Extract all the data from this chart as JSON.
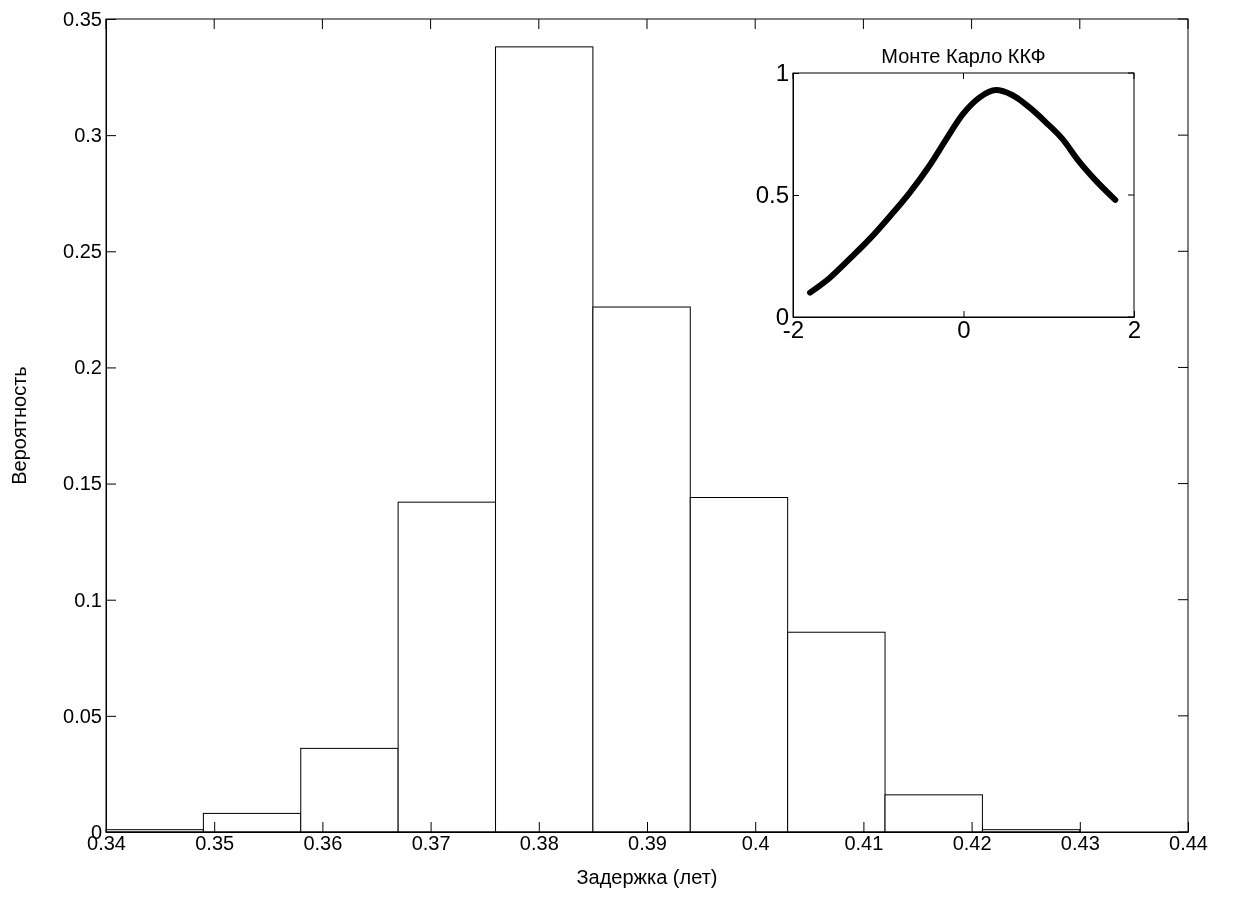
{
  "chart_data": [
    {
      "type": "histogram",
      "xlabel": "Задержка (лет)",
      "ylabel": "Вероятность",
      "color": "#ffffff",
      "bins": [
        0.34,
        0.349,
        0.358,
        0.367,
        0.376,
        0.385,
        0.394,
        0.403,
        0.412,
        0.421,
        0.43
      ],
      "values": [
        0.001,
        0.008,
        0.036,
        0.142,
        0.338,
        0.226,
        0.144,
        0.086,
        0.016,
        0.001
      ],
      "xlim": [
        0.34,
        0.44
      ],
      "xticks": [
        0.34,
        0.35,
        0.36,
        0.37,
        0.38,
        0.39,
        0.4,
        0.41,
        0.42,
        0.43,
        0.44
      ],
      "ylim": [
        0,
        0.35
      ],
      "yticks": [
        0,
        0.05,
        0.1,
        0.15,
        0.2,
        0.25,
        0.3,
        0.35
      ]
    },
    {
      "type": "line",
      "title": "Монте Карло ККФ",
      "x": [
        -1.8,
        -1.57,
        -1.33,
        -1.1,
        -0.87,
        -0.63,
        -0.4,
        -0.2,
        -0.01,
        0.19,
        0.38,
        0.57,
        0.77,
        0.96,
        1.16,
        1.35,
        1.55,
        1.78
      ],
      "series": [
        {
          "color": "#000000",
          "values": [
            0.1,
            0.16,
            0.24,
            0.32,
            0.41,
            0.51,
            0.62,
            0.73,
            0.83,
            0.9,
            0.93,
            0.91,
            0.86,
            0.8,
            0.73,
            0.64,
            0.56,
            0.48
          ]
        }
      ],
      "xlim": [
        -2,
        2
      ],
      "xticks": [
        -2,
        0,
        2
      ],
      "ylim": [
        0,
        1
      ],
      "yticks": [
        0,
        0.5,
        1
      ]
    }
  ]
}
